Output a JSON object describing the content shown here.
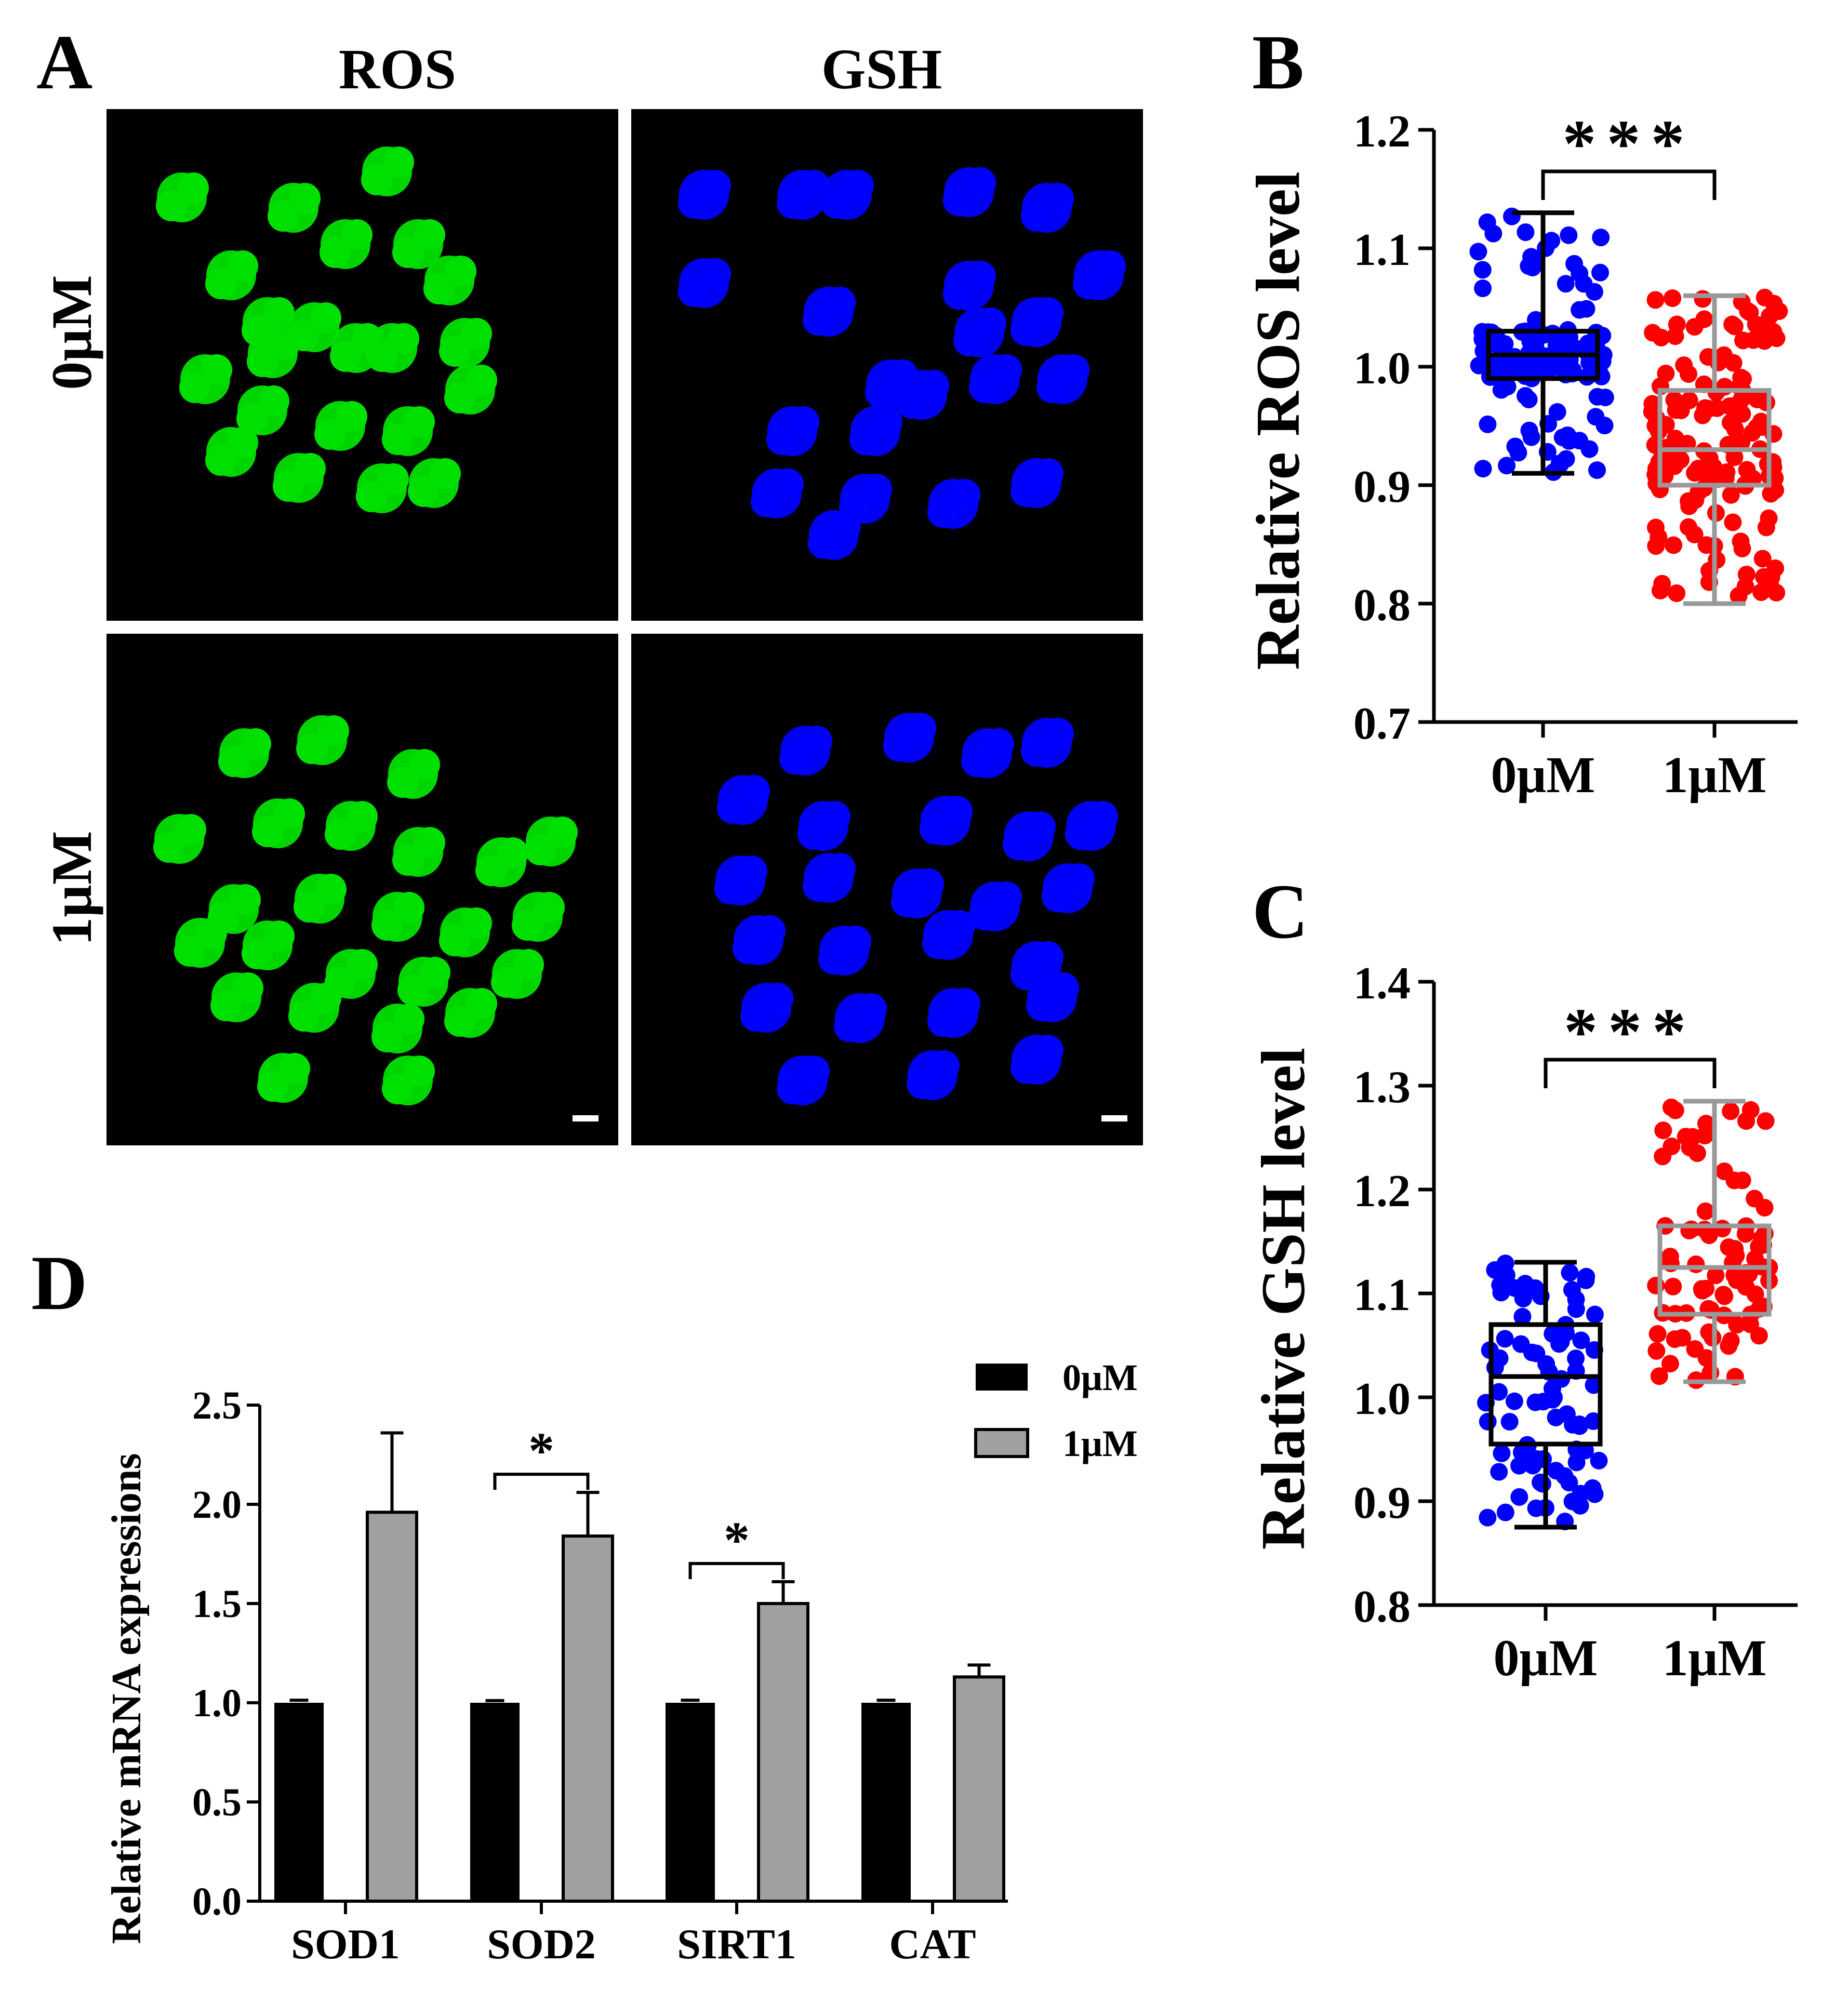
{
  "colors": {
    "ros_fluor": "#00e000",
    "gsh_fluor": "#0000ff",
    "blue_points": "#0000ff",
    "red_points": "#ff0000",
    "box_gray": "#999999",
    "bar_black": "#000000",
    "bar_gray": "#a0a0a0"
  },
  "panel_a": {
    "letter": "A",
    "columns": [
      "ROS",
      "GSH"
    ],
    "rows": [
      "0μM",
      "1μM"
    ]
  },
  "chart_data": [
    {
      "panel": "B",
      "type": "box-scatter",
      "ylabel": "Relative ROS level",
      "ylim": [
        0.7,
        1.2
      ],
      "yticks": [
        0.7,
        0.8,
        0.9,
        1.0,
        1.1,
        1.2
      ],
      "ytick_labels": [
        "0.7",
        "0.8",
        "0.9",
        "1.0",
        "1.1",
        "1.2"
      ],
      "categories": [
        "0μM",
        "1μM"
      ],
      "boxes": [
        {
          "name": "0μM",
          "color": "blue",
          "min": 0.91,
          "q1": 0.99,
          "median": 1.01,
          "q3": 1.03,
          "max": 1.13,
          "n": 140
        },
        {
          "name": "1μM",
          "color": "red",
          "min": 0.8,
          "q1": 0.9,
          "median": 0.93,
          "q3": 0.98,
          "max": 1.06,
          "n": 150
        }
      ],
      "significance": "***"
    },
    {
      "panel": "C",
      "type": "box-scatter",
      "ylabel": "Relative GSH level",
      "ylim": [
        0.8,
        1.4
      ],
      "yticks": [
        0.8,
        0.9,
        1.0,
        1.1,
        1.2,
        1.3,
        1.4
      ],
      "ytick_labels": [
        "0.8",
        "0.9",
        "1.0",
        "1.1",
        "1.2",
        "1.3",
        "1.4"
      ],
      "categories": [
        "0μM",
        "1μM"
      ],
      "boxes": [
        {
          "name": "0μM",
          "color": "blue",
          "min": 0.875,
          "q1": 0.955,
          "median": 1.02,
          "q3": 1.07,
          "max": 1.13,
          "n": 85
        },
        {
          "name": "1μM",
          "color": "red",
          "min": 1.015,
          "q1": 1.08,
          "median": 1.125,
          "q3": 1.165,
          "max": 1.285,
          "n": 85
        }
      ],
      "significance": "***"
    },
    {
      "panel": "D",
      "type": "bar",
      "ylabel": "Relative mRNA expressions",
      "ylim": [
        0,
        2.5
      ],
      "yticks": [
        0.0,
        0.5,
        1.0,
        1.5,
        2.0,
        2.5
      ],
      "ytick_labels": [
        "0.0",
        "0.5",
        "1.0",
        "1.5",
        "2.0",
        "2.5"
      ],
      "categories": [
        "SOD1",
        "SOD2",
        "SIRT1",
        "CAT"
      ],
      "series": [
        {
          "name": "0μM",
          "values": [
            1.0,
            1.0,
            1.0,
            1.0
          ],
          "errors": [
            0.005,
            0.003,
            0.005,
            0.005
          ]
        },
        {
          "name": "1μM",
          "values": [
            1.96,
            1.84,
            1.5,
            1.13
          ],
          "errors": [
            0.4,
            0.22,
            0.11,
            0.06
          ]
        }
      ],
      "significance": [
        {
          "category": "SOD2",
          "label": "*"
        },
        {
          "category": "SIRT1",
          "label": "*"
        }
      ],
      "legend": [
        "0μM",
        "1μM"
      ]
    }
  ]
}
